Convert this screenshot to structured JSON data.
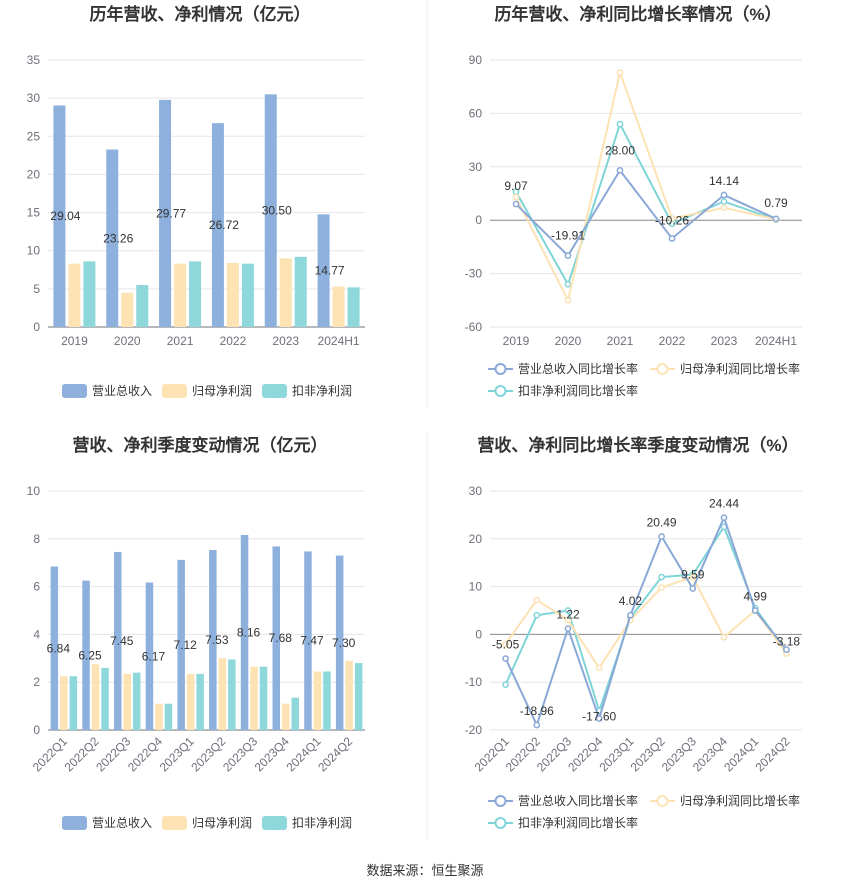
{
  "colors": {
    "revenue": "#8eb0dc",
    "net_profit": "#fde2b4",
    "deducted_profit": "#8ed8dc",
    "line_revenue": "#8aa8d6",
    "line_net": "#fde2b4",
    "line_deducted": "#7fd4d8",
    "grid": "#e6e6e6",
    "axis_text": "#6e7079",
    "title": "#333333"
  },
  "source": "数据来源：恒生聚源",
  "chart_data": [
    {
      "id": "annual-bar",
      "type": "bar",
      "title": "历年营收、净利情况（亿元）",
      "categories": [
        "2019",
        "2020",
        "2021",
        "2022",
        "2023",
        "2024H1"
      ],
      "ylim": [
        0,
        35
      ],
      "yticks": [
        0,
        5,
        10,
        15,
        20,
        25,
        30,
        35
      ],
      "series": [
        {
          "name": "营业总收入",
          "values": [
            29.04,
            23.26,
            29.77,
            26.72,
            30.5,
            14.77
          ],
          "labels": [
            "29.04",
            "23.26",
            "29.77",
            "26.72",
            "30.50",
            "14.77"
          ]
        },
        {
          "name": "归母净利润",
          "values": [
            8.3,
            4.5,
            8.3,
            8.4,
            9.0,
            5.3
          ]
        },
        {
          "name": "扣非净利润",
          "values": [
            8.6,
            5.5,
            8.6,
            8.3,
            9.2,
            5.2
          ]
        }
      ],
      "legend_position": "bottom",
      "grid": true
    },
    {
      "id": "annual-line",
      "type": "line",
      "title": "历年营收、净利同比增长率情况（%）",
      "categories": [
        "2019",
        "2020",
        "2021",
        "2022",
        "2023",
        "2024H1"
      ],
      "ylim": [
        -60,
        90
      ],
      "yticks": [
        -60,
        -30,
        0,
        30,
        60,
        90
      ],
      "series": [
        {
          "name": "营业总收入同比增长率",
          "values": [
            9.07,
            -19.91,
            28.0,
            -10.26,
            14.14,
            0.79
          ],
          "labels": [
            "9.07",
            "-19.91",
            "28.00",
            "-10.26",
            "14.14",
            "0.79"
          ]
        },
        {
          "name": "归母净利润同比增长率",
          "values": [
            13,
            -45,
            83,
            1,
            7,
            0.5
          ]
        },
        {
          "name": "扣非净利润同比增长率",
          "values": [
            16,
            -36,
            54,
            -2,
            10.5,
            0.3
          ]
        }
      ],
      "legend_position": "bottom",
      "grid": true
    },
    {
      "id": "quarter-bar",
      "type": "bar",
      "title": "营收、净利季度变动情况（亿元）",
      "categories": [
        "2022Q1",
        "2022Q2",
        "2022Q3",
        "2022Q4",
        "2023Q1",
        "2023Q2",
        "2023Q3",
        "2023Q4",
        "2024Q1",
        "2024Q2"
      ],
      "ylim": [
        0,
        10
      ],
      "yticks": [
        0,
        2,
        4,
        6,
        8,
        10
      ],
      "series": [
        {
          "name": "营业总收入",
          "values": [
            6.84,
            6.25,
            7.45,
            6.17,
            7.12,
            7.53,
            8.16,
            7.68,
            7.47,
            7.3
          ],
          "labels": [
            "6.84",
            "6.25",
            "7.45",
            "6.17",
            "7.12",
            "7.53",
            "8.16",
            "7.68",
            "7.47",
            "7.30"
          ]
        },
        {
          "name": "归母净利润",
          "values": [
            2.25,
            2.75,
            2.35,
            1.1,
            2.35,
            3.0,
            2.65,
            1.1,
            2.45,
            2.9
          ]
        },
        {
          "name": "扣非净利润",
          "values": [
            2.25,
            2.6,
            2.4,
            1.1,
            2.35,
            2.95,
            2.65,
            1.35,
            2.45,
            2.8
          ]
        }
      ],
      "legend_position": "bottom",
      "grid": true
    },
    {
      "id": "quarter-line",
      "type": "line",
      "title": "营收、净利同比增长率季度变动情况（%）",
      "categories": [
        "2022Q1",
        "2022Q2",
        "2022Q3",
        "2022Q4",
        "2023Q1",
        "2023Q2",
        "2023Q3",
        "2023Q4",
        "2024Q1",
        "2024Q2"
      ],
      "ylim": [
        -20,
        30
      ],
      "yticks": [
        -20,
        -10,
        0,
        10,
        20,
        30
      ],
      "series": [
        {
          "name": "营业总收入同比增长率",
          "values": [
            -5.05,
            -18.96,
            1.22,
            -17.6,
            4.02,
            20.49,
            9.59,
            24.44,
            4.99,
            -3.18
          ],
          "labels": [
            "-5.05",
            "-18.96",
            "1.22",
            "-17.60",
            "4.02",
            "20.49",
            "9.59",
            "24.44",
            "4.99",
            "-3.18"
          ]
        },
        {
          "name": "归母净利润同比增长率",
          "values": [
            -2,
            7.2,
            3,
            -7,
            3,
            9.8,
            12,
            -0.6,
            5,
            -4
          ]
        },
        {
          "name": "扣非净利润同比增长率",
          "values": [
            -10.5,
            4,
            5,
            -16,
            3.5,
            12,
            12.5,
            22.5,
            5.5,
            -3.5
          ]
        }
      ],
      "legend_position": "bottom",
      "grid": true
    }
  ]
}
